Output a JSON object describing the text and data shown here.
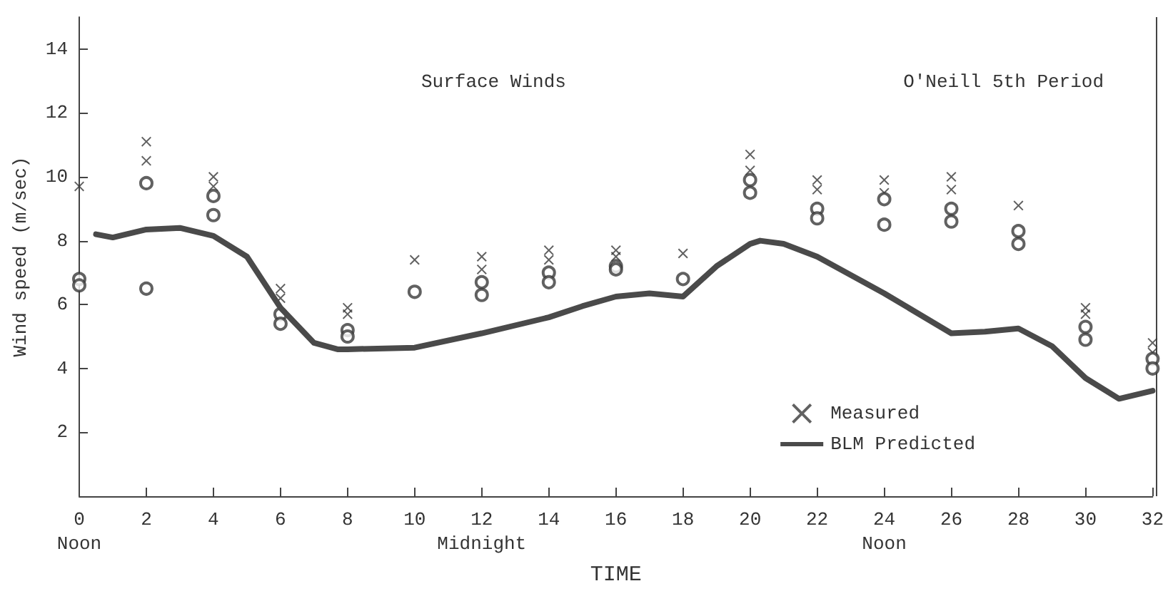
{
  "chart_data": {
    "type": "scatter",
    "title": "Surface Winds",
    "subtitle": "O'Neill 5th Period",
    "xlabel": "TIME",
    "ylabel": "Wind speed (m/sec)",
    "xlim": [
      0,
      32
    ],
    "xticks": [
      {
        "value": 0,
        "label": "0\nNoon"
      },
      2,
      4,
      6,
      8,
      10,
      {
        "value": 12,
        "label": "12\nMidnight"
      },
      14,
      16,
      18,
      20,
      22,
      {
        "value": 24,
        "label": "24\nNoon"
      },
      26,
      28,
      30,
      32
    ],
    "ylim": [
      0,
      15
    ],
    "yticks": [
      2,
      4,
      6,
      8,
      10,
      12,
      14
    ],
    "legend": "bottom right",
    "series": [
      {
        "name": "Measured",
        "marker": "cross",
        "color": "#3a3a3a",
        "x": [
          0,
          2,
          2,
          4,
          4,
          6,
          6,
          8,
          8,
          10,
          12,
          12,
          14,
          14,
          16,
          16,
          18,
          20,
          20,
          22,
          22,
          24,
          24,
          26,
          26,
          28,
          30,
          30,
          32,
          32
        ],
        "values": [
          9.7,
          11.1,
          10.5,
          10.0,
          9.7,
          6.5,
          6.2,
          5.9,
          5.7,
          7.4,
          7.5,
          7.1,
          7.7,
          7.4,
          7.7,
          7.5,
          7.6,
          10.7,
          10.2,
          9.9,
          9.6,
          9.9,
          9.5,
          10.0,
          9.6,
          9.1,
          5.9,
          5.7,
          4.8,
          4.5
        ]
      },
      {
        "marker": "circle",
        "color": "#3a3a3a",
        "x": [
          0,
          0,
          2,
          2,
          4,
          4,
          6,
          6,
          8,
          8,
          10,
          12,
          12,
          14,
          14,
          16,
          16,
          18,
          20,
          20,
          22,
          22,
          24,
          24,
          26,
          26,
          28,
          28,
          30,
          30,
          32,
          32
        ],
        "values": [
          6.8,
          6.6,
          9.8,
          6.5,
          9.4,
          8.8,
          5.7,
          5.4,
          5.2,
          5.0,
          6.4,
          6.7,
          6.3,
          7.0,
          6.7,
          7.2,
          7.1,
          6.8,
          9.9,
          9.5,
          9.0,
          8.7,
          9.3,
          8.5,
          9.0,
          8.6,
          8.3,
          7.9,
          5.3,
          4.9,
          4.3,
          4.0
        ]
      },
      {
        "name": "BLM Predicted",
        "type": "line",
        "marker": "none",
        "color": "#4a4a4a",
        "x": [
          0.5,
          1,
          2,
          3,
          4,
          5,
          6,
          7,
          7.7,
          8,
          10,
          12,
          14,
          15,
          16,
          17,
          18,
          19,
          20,
          20.3,
          21,
          22,
          24,
          26,
          27,
          28,
          29,
          30,
          31,
          32
        ],
        "values": [
          8.2,
          8.1,
          8.35,
          8.4,
          8.15,
          7.5,
          5.9,
          4.8,
          4.6,
          4.6,
          4.65,
          5.1,
          5.6,
          5.95,
          6.25,
          6.35,
          6.25,
          7.2,
          7.9,
          8.0,
          7.9,
          7.5,
          6.35,
          5.1,
          5.15,
          5.25,
          4.7,
          3.7,
          3.05,
          3.3
        ]
      }
    ]
  }
}
